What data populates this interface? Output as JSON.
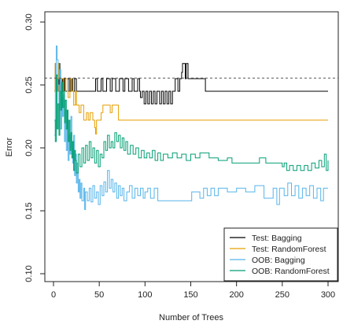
{
  "chart_data": {
    "type": "line",
    "title": "",
    "xlabel": "Number of Trees",
    "ylabel": "Error",
    "xlim": [
      0,
      300
    ],
    "ylim": [
      0.1,
      0.3
    ],
    "xticks": [
      0,
      50,
      100,
      150,
      200,
      250,
      300
    ],
    "yticks": [
      0.1,
      0.15,
      0.2,
      0.25,
      0.3
    ],
    "xtick_labels": [
      "0",
      "50",
      "100",
      "150",
      "200",
      "250",
      "300"
    ],
    "ytick_labels": [
      "0.10",
      "0.15",
      "0.20",
      "0.25",
      "0.30"
    ],
    "grid": false,
    "legend_position": "bottom-right",
    "reference_line": {
      "y": 0.2555,
      "style": "dashed",
      "color": "#555555"
    },
    "series": [
      {
        "name": "Test: Bagging",
        "color": "#000000",
        "points": [
          [
            1,
            0.245
          ],
          [
            2,
            0.267
          ],
          [
            3,
            0.245
          ],
          [
            4,
            0.255
          ],
          [
            5,
            0.245
          ],
          [
            6,
            0.267
          ],
          [
            7,
            0.245
          ],
          [
            8,
            0.255
          ],
          [
            9,
            0.245
          ],
          [
            10,
            0.255
          ],
          [
            11,
            0.245
          ],
          [
            12,
            0.255
          ],
          [
            13,
            0.245
          ],
          [
            15,
            0.255
          ],
          [
            17,
            0.245
          ],
          [
            19,
            0.255
          ],
          [
            21,
            0.245
          ],
          [
            23,
            0.255
          ],
          [
            25,
            0.245
          ],
          [
            45,
            0.245
          ],
          [
            46,
            0.255
          ],
          [
            48,
            0.245
          ],
          [
            52,
            0.255
          ],
          [
            54,
            0.245
          ],
          [
            58,
            0.255
          ],
          [
            62,
            0.245
          ],
          [
            64,
            0.255
          ],
          [
            68,
            0.245
          ],
          [
            72,
            0.255
          ],
          [
            76,
            0.245
          ],
          [
            78,
            0.255
          ],
          [
            82,
            0.245
          ],
          [
            86,
            0.255
          ],
          [
            88,
            0.245
          ],
          [
            92,
            0.255
          ],
          [
            94,
            0.245
          ],
          [
            95,
            0.24
          ],
          [
            97,
            0.245
          ],
          [
            99,
            0.235
          ],
          [
            101,
            0.245
          ],
          [
            103,
            0.235
          ],
          [
            105,
            0.245
          ],
          [
            107,
            0.235
          ],
          [
            109,
            0.245
          ],
          [
            111,
            0.235
          ],
          [
            113,
            0.245
          ],
          [
            116,
            0.235
          ],
          [
            118,
            0.245
          ],
          [
            120,
            0.235
          ],
          [
            122,
            0.245
          ],
          [
            124,
            0.235
          ],
          [
            126,
            0.245
          ],
          [
            128,
            0.235
          ],
          [
            130,
            0.245
          ],
          [
            133,
            0.255
          ],
          [
            136,
            0.245
          ],
          [
            138,
            0.255
          ],
          [
            140,
            0.26
          ],
          [
            141,
            0.267
          ],
          [
            144,
            0.255
          ],
          [
            145,
            0.267
          ],
          [
            147,
            0.255
          ],
          [
            150,
            0.255
          ],
          [
            165,
            0.255
          ],
          [
            166,
            0.245
          ],
          [
            300,
            0.245
          ]
        ]
      },
      {
        "name": "Test: RandomForest",
        "color": "#e69f00",
        "points": [
          [
            1,
            0.245
          ],
          [
            2,
            0.267
          ],
          [
            3,
            0.255
          ],
          [
            4,
            0.245
          ],
          [
            5,
            0.267
          ],
          [
            6,
            0.255
          ],
          [
            8,
            0.245
          ],
          [
            9,
            0.255
          ],
          [
            11,
            0.245
          ],
          [
            13,
            0.255
          ],
          [
            15,
            0.245
          ],
          [
            16,
            0.24
          ],
          [
            18,
            0.255
          ],
          [
            20,
            0.245
          ],
          [
            22,
            0.234
          ],
          [
            24,
            0.245
          ],
          [
            25,
            0.234
          ],
          [
            28,
            0.228
          ],
          [
            30,
            0.234
          ],
          [
            33,
            0.222
          ],
          [
            36,
            0.228
          ],
          [
            38,
            0.222
          ],
          [
            40,
            0.228
          ],
          [
            43,
            0.222
          ],
          [
            45,
            0.216
          ],
          [
            46,
            0.211
          ],
          [
            47,
            0.222
          ],
          [
            50,
            0.222
          ],
          [
            52,
            0.228
          ],
          [
            54,
            0.234
          ],
          [
            60,
            0.234
          ],
          [
            62,
            0.228
          ],
          [
            64,
            0.234
          ],
          [
            70,
            0.234
          ],
          [
            71,
            0.222
          ],
          [
            300,
            0.222
          ]
        ]
      },
      {
        "name": "OOB: Bagging",
        "color": "#56b4e9",
        "points": [
          [
            1,
            0.21
          ],
          [
            2,
            0.245
          ],
          [
            3,
            0.281
          ],
          [
            4,
            0.27
          ],
          [
            5,
            0.25
          ],
          [
            6,
            0.23
          ],
          [
            7,
            0.262
          ],
          [
            8,
            0.215
          ],
          [
            9,
            0.24
          ],
          [
            10,
            0.225
          ],
          [
            11,
            0.242
          ],
          [
            12,
            0.205
          ],
          [
            13,
            0.23
          ],
          [
            14,
            0.198
          ],
          [
            15,
            0.222
          ],
          [
            16,
            0.19
          ],
          [
            17,
            0.21
          ],
          [
            18,
            0.195
          ],
          [
            19,
            0.225
          ],
          [
            20,
            0.2
          ],
          [
            21,
            0.188
          ],
          [
            22,
            0.21
          ],
          [
            23,
            0.178
          ],
          [
            24,
            0.195
          ],
          [
            25,
            0.172
          ],
          [
            26,
            0.188
          ],
          [
            27,
            0.165
          ],
          [
            28,
            0.175
          ],
          [
            29,
            0.16
          ],
          [
            30,
            0.172
          ],
          [
            31,
            0.158
          ],
          [
            33,
            0.168
          ],
          [
            34,
            0.151
          ],
          [
            35,
            0.165
          ],
          [
            37,
            0.158
          ],
          [
            39,
            0.168
          ],
          [
            41,
            0.157
          ],
          [
            43,
            0.17
          ],
          [
            45,
            0.16
          ],
          [
            47,
            0.165
          ],
          [
            49,
            0.155
          ],
          [
            51,
            0.17
          ],
          [
            53,
            0.162
          ],
          [
            55,
            0.173
          ],
          [
            57,
            0.165
          ],
          [
            59,
            0.182
          ],
          [
            61,
            0.168
          ],
          [
            63,
            0.175
          ],
          [
            65,
            0.165
          ],
          [
            67,
            0.172
          ],
          [
            69,
            0.16
          ],
          [
            71,
            0.17
          ],
          [
            73,
            0.162
          ],
          [
            75,
            0.168
          ],
          [
            77,
            0.158
          ],
          [
            80,
            0.165
          ],
          [
            83,
            0.17
          ],
          [
            86,
            0.16
          ],
          [
            89,
            0.168
          ],
          [
            92,
            0.162
          ],
          [
            95,
            0.168
          ],
          [
            98,
            0.16
          ],
          [
            100,
            0.165
          ],
          [
            103,
            0.168
          ],
          [
            106,
            0.16
          ],
          [
            110,
            0.168
          ],
          [
            114,
            0.158
          ],
          [
            150,
            0.158
          ],
          [
            151,
            0.165
          ],
          [
            160,
            0.16
          ],
          [
            164,
            0.168
          ],
          [
            168,
            0.162
          ],
          [
            172,
            0.168
          ],
          [
            176,
            0.162
          ],
          [
            180,
            0.168
          ],
          [
            190,
            0.165
          ],
          [
            200,
            0.168
          ],
          [
            210,
            0.165
          ],
          [
            220,
            0.17
          ],
          [
            230,
            0.16
          ],
          [
            240,
            0.168
          ],
          [
            244,
            0.155
          ],
          [
            247,
            0.168
          ],
          [
            252,
            0.162
          ],
          [
            256,
            0.172
          ],
          [
            260,
            0.162
          ],
          [
            264,
            0.17
          ],
          [
            268,
            0.16
          ],
          [
            272,
            0.168
          ],
          [
            276,
            0.162
          ],
          [
            280,
            0.17
          ],
          [
            284,
            0.16
          ],
          [
            288,
            0.168
          ],
          [
            292,
            0.158
          ],
          [
            295,
            0.168
          ],
          [
            300,
            0.168
          ]
        ]
      },
      {
        "name": "OOB: RandomForest",
        "color": "#009e73",
        "points": [
          [
            1,
            0.222
          ],
          [
            2,
            0.205
          ],
          [
            3,
            0.258
          ],
          [
            4,
            0.215
          ],
          [
            5,
            0.235
          ],
          [
            6,
            0.21
          ],
          [
            7,
            0.245
          ],
          [
            8,
            0.23
          ],
          [
            9,
            0.252
          ],
          [
            10,
            0.232
          ],
          [
            11,
            0.245
          ],
          [
            12,
            0.22
          ],
          [
            13,
            0.238
          ],
          [
            14,
            0.215
          ],
          [
            15,
            0.23
          ],
          [
            16,
            0.205
          ],
          [
            17,
            0.222
          ],
          [
            18,
            0.198
          ],
          [
            19,
            0.212
          ],
          [
            20,
            0.192
          ],
          [
            21,
            0.205
          ],
          [
            22,
            0.182
          ],
          [
            23,
            0.198
          ],
          [
            24,
            0.19
          ],
          [
            25,
            0.18
          ],
          [
            27,
            0.195
          ],
          [
            29,
            0.185
          ],
          [
            31,
            0.2
          ],
          [
            33,
            0.188
          ],
          [
            35,
            0.202
          ],
          [
            37,
            0.19
          ],
          [
            39,
            0.205
          ],
          [
            41,
            0.192
          ],
          [
            43,
            0.2
          ],
          [
            45,
            0.188
          ],
          [
            47,
            0.198
          ],
          [
            49,
            0.185
          ],
          [
            51,
            0.195
          ],
          [
            53,
            0.192
          ],
          [
            55,
            0.205
          ],
          [
            57,
            0.198
          ],
          [
            59,
            0.21
          ],
          [
            61,
            0.2
          ],
          [
            63,
            0.205
          ],
          [
            65,
            0.2
          ],
          [
            67,
            0.212
          ],
          [
            69,
            0.205
          ],
          [
            71,
            0.21
          ],
          [
            73,
            0.2
          ],
          [
            75,
            0.208
          ],
          [
            77,
            0.198
          ],
          [
            79,
            0.205
          ],
          [
            81,
            0.195
          ],
          [
            84,
            0.202
          ],
          [
            87,
            0.195
          ],
          [
            90,
            0.2
          ],
          [
            93,
            0.192
          ],
          [
            96,
            0.198
          ],
          [
            99,
            0.192
          ],
          [
            102,
            0.196
          ],
          [
            105,
            0.192
          ],
          [
            108,
            0.198
          ],
          [
            111,
            0.19
          ],
          [
            114,
            0.196
          ],
          [
            117,
            0.19
          ],
          [
            120,
            0.195
          ],
          [
            125,
            0.192
          ],
          [
            130,
            0.196
          ],
          [
            135,
            0.192
          ],
          [
            140,
            0.195
          ],
          [
            145,
            0.19
          ],
          [
            150,
            0.195
          ],
          [
            155,
            0.192
          ],
          [
            160,
            0.196
          ],
          [
            170,
            0.192
          ],
          [
            180,
            0.19
          ],
          [
            190,
            0.192
          ],
          [
            195,
            0.188
          ],
          [
            220,
            0.188
          ],
          [
            225,
            0.192
          ],
          [
            232,
            0.188
          ],
          [
            245,
            0.188
          ],
          [
            250,
            0.185
          ],
          [
            252,
            0.188
          ],
          [
            255,
            0.182
          ],
          [
            258,
            0.186
          ],
          [
            262,
            0.182
          ],
          [
            266,
            0.186
          ],
          [
            270,
            0.182
          ],
          [
            274,
            0.186
          ],
          [
            278,
            0.182
          ],
          [
            282,
            0.188
          ],
          [
            286,
            0.184
          ],
          [
            290,
            0.19
          ],
          [
            293,
            0.185
          ],
          [
            296,
            0.195
          ],
          [
            298,
            0.182
          ],
          [
            300,
            0.19
          ]
        ]
      }
    ]
  }
}
